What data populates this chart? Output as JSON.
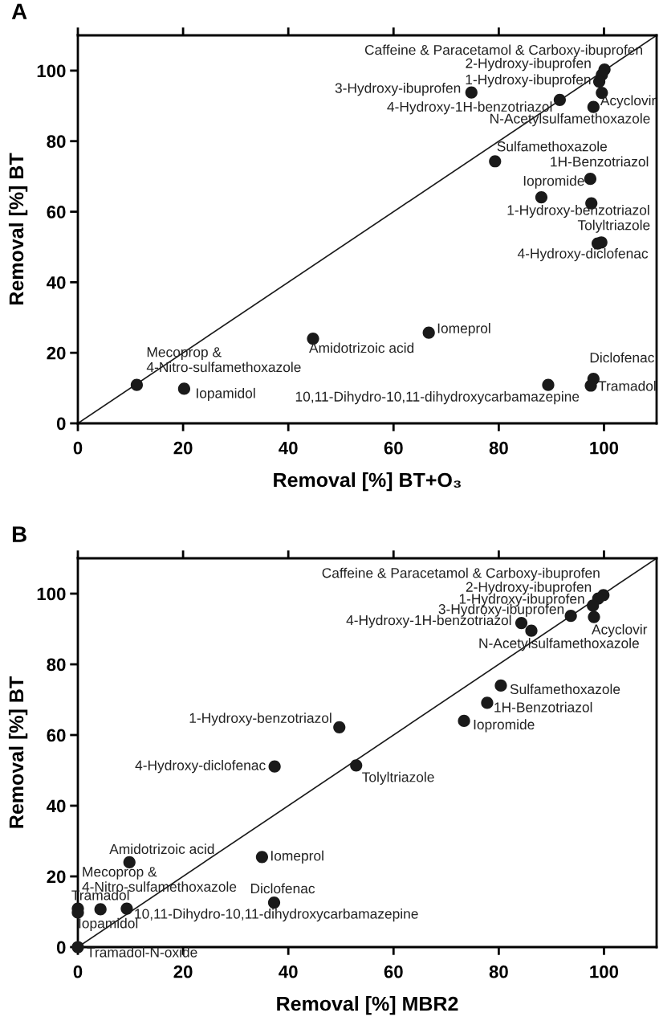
{
  "chart_data": [
    {
      "type": "scatter",
      "xlabel": "Removal [%] BT+O₃",
      "ylabel": "Removal [%] BT",
      "xlim": [
        0,
        110
      ],
      "ylim": [
        0,
        110
      ],
      "xticks": [
        0,
        20,
        40,
        60,
        80,
        100
      ],
      "yticks": [
        0,
        20,
        40,
        60,
        80,
        100
      ],
      "grid": false,
      "series": [
        {
          "type": "scatter",
          "marker": "circle",
          "color": "#1a1a1a",
          "x": [
            100.1,
            99.6,
            99.1,
            74.8,
            91.6,
            99.6,
            98.0,
            79.3,
            97.4,
            88.1,
            97.6,
            99.5,
            98.8,
            44.7,
            66.7,
            11.2,
            20.2,
            89.4,
            98.0,
            97.5
          ],
          "values": [
            100.3,
            98.8,
            96.9,
            93.8,
            91.7,
            93.7,
            89.7,
            74.3,
            69.3,
            64.1,
            62.4,
            51.3,
            51.0,
            24.0,
            25.7,
            10.9,
            9.8,
            10.9,
            12.6,
            10.7
          ]
        },
        {
          "type": "line",
          "color": "#1a1a1a",
          "x": [
            0,
            110
          ],
          "values": [
            0,
            110
          ]
        }
      ],
      "annotations": [
        "A",
        {
          "text": "Caffeine & Paracetamol & Carboxy-ibuprofen",
          "x": 100.1,
          "y": 100.3
        },
        {
          "text": "2-Hydroxy-ibuprofen",
          "x": 99.6,
          "y": 98.8
        },
        {
          "text": "1-Hydroxy-ibuprofen",
          "x": 99.1,
          "y": 96.9
        },
        {
          "text": "3-Hydroxy-ibuprofen",
          "x": 74.8,
          "y": 93.8
        },
        {
          "text": "4-Hydroxy-1H-benzotriazol",
          "x": 91.6,
          "y": 91.7
        },
        {
          "text": "Acyclovir",
          "x": 99.6,
          "y": 93.7
        },
        {
          "text": "N-Acetylsulfamethoxazole",
          "x": 98.0,
          "y": 89.7
        },
        {
          "text": "Sulfamethoxazole",
          "x": 79.3,
          "y": 74.3
        },
        {
          "text": "1H-Benzotriazol",
          "x": 97.4,
          "y": 69.3
        },
        {
          "text": "Iopromide",
          "x": 88.1,
          "y": 64.1
        },
        {
          "text": "1-Hydroxy-benzotriazol",
          "x": 97.6,
          "y": 62.4
        },
        {
          "text": "Tolyltriazole",
          "x": 99.5,
          "y": 51.3
        },
        {
          "text": "4-Hydroxy-diclofenac",
          "x": 98.8,
          "y": 51.0
        },
        {
          "text": "Amidotrizoic acid",
          "x": 44.7,
          "y": 24.0
        },
        {
          "text": "Iomeprol",
          "x": 66.7,
          "y": 25.7
        },
        {
          "text": "Mecoprop &\n4-Nitro-sulfamethoxazole",
          "x": 11.2,
          "y": 10.9
        },
        {
          "text": "Iopamidol",
          "x": 20.2,
          "y": 9.8
        },
        {
          "text": "10,11-Dihydro-10,11-dihydroxycarbamazepine",
          "x": 89.4,
          "y": 10.9
        },
        {
          "text": "Diclofenac",
          "x": 98.0,
          "y": 12.6
        },
        {
          "text": "Tramadol",
          "x": 97.5,
          "y": 10.7
        }
      ]
    },
    {
      "type": "scatter",
      "xlabel": "Removal [%] MBR2",
      "ylabel": "Removal [%] BT",
      "xlim": [
        0,
        110
      ],
      "ylim": [
        0,
        110
      ],
      "xticks": [
        0,
        20,
        40,
        60,
        80,
        100
      ],
      "yticks": [
        0,
        20,
        40,
        60,
        80,
        100
      ],
      "grid": false,
      "series": [
        {
          "type": "scatter",
          "marker": "circle",
          "color": "#1a1a1a",
          "x": [
            99.9,
            98.9,
            97.9,
            93.7,
            84.3,
            98.1,
            86.2,
            80.4,
            77.8,
            73.4,
            49.7,
            37.4,
            52.9,
            9.8,
            35.0,
            0,
            4.3,
            0,
            9.3,
            37.3,
            0
          ],
          "values": [
            99.6,
            98.6,
            96.6,
            93.7,
            91.7,
            93.4,
            89.5,
            74.0,
            69.1,
            64.0,
            62.2,
            51.1,
            51.4,
            24.0,
            25.5,
            10.9,
            10.7,
            9.8,
            10.9,
            12.6,
            0
          ]
        },
        {
          "type": "line",
          "color": "#1a1a1a",
          "x": [
            0,
            110
          ],
          "values": [
            0,
            110
          ]
        }
      ],
      "annotations": [
        "B",
        {
          "text": "Caffeine & Paracetamol & Carboxy-ibuprofen",
          "x": 99.9,
          "y": 99.6
        },
        {
          "text": "2-Hydroxy-ibuprofen",
          "x": 98.9,
          "y": 98.6
        },
        {
          "text": "1-Hydroxy-ibuprofen",
          "x": 97.9,
          "y": 96.6
        },
        {
          "text": "3-Hydroxy-ibuprofen",
          "x": 93.7,
          "y": 93.7
        },
        {
          "text": "4-Hydroxy-1H-benzotriazol",
          "x": 84.3,
          "y": 91.7
        },
        {
          "text": "Acyclovir",
          "x": 98.1,
          "y": 93.4
        },
        {
          "text": "N-Acetylsulfamethoxazole",
          "x": 86.2,
          "y": 89.5
        },
        {
          "text": "Sulfamethoxazole",
          "x": 80.4,
          "y": 74.0
        },
        {
          "text": "1H-Benzotriazol",
          "x": 77.8,
          "y": 69.1
        },
        {
          "text": "Iopromide",
          "x": 73.4,
          "y": 64.0
        },
        {
          "text": "1-Hydroxy-benzotriazol",
          "x": 49.7,
          "y": 62.2
        },
        {
          "text": "4-Hydroxy-diclofenac",
          "x": 37.4,
          "y": 51.1
        },
        {
          "text": "Tolyltriazole",
          "x": 52.9,
          "y": 51.4
        },
        {
          "text": "Amidotrizoic acid",
          "x": 9.8,
          "y": 24.0
        },
        {
          "text": "Iomeprol",
          "x": 35.0,
          "y": 25.5
        },
        {
          "text": "Mecoprop &\n4-Nitro-sulfamethoxazole",
          "x": 0,
          "y": 10.9
        },
        {
          "text": "Tramadol",
          "x": 4.3,
          "y": 10.7
        },
        {
          "text": "Iopamidol",
          "x": 0,
          "y": 9.8
        },
        {
          "text": "10,11-Dihydro-10,11-dihydroxycarbamazepine",
          "x": 9.3,
          "y": 10.9
        },
        {
          "text": "Diclofenac",
          "x": 37.3,
          "y": 12.6
        },
        {
          "text": "Tramadol-N-oxide",
          "x": 0,
          "y": 0
        }
      ]
    }
  ]
}
